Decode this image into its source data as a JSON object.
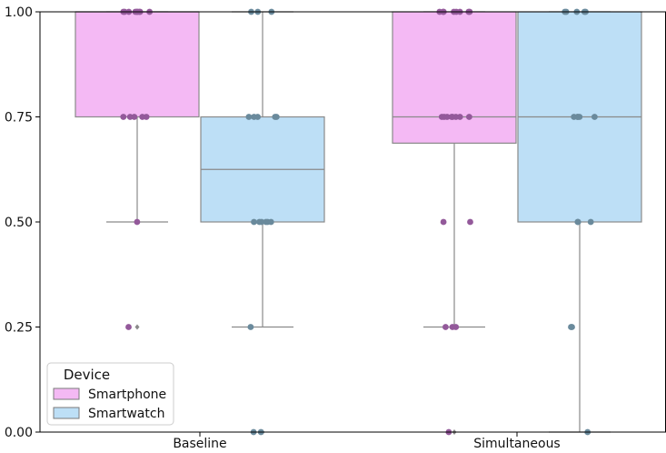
{
  "chart_data": {
    "type": "boxplot",
    "categories": [
      "Baseline",
      "Simultaneous"
    ],
    "ylim": [
      0,
      1
    ],
    "yticks": [
      "0.00",
      "0.25",
      "0.50",
      "0.75",
      "1.00"
    ],
    "ytick_values": [
      0,
      0.25,
      0.5,
      0.75,
      1
    ],
    "grid": false,
    "legend": {
      "title": "Device",
      "placement": "lower-left",
      "entries": [
        "Smartphone",
        "Smartwatch"
      ]
    },
    "series": [
      {
        "name": "Smartphone",
        "color": "#f4b9f4",
        "point_color": "#93599a",
        "boxes": [
          {
            "category": "Baseline",
            "whisker_low": 0.5,
            "q1": 0.75,
            "median": 1.0,
            "q3": 1.0,
            "whisker_high": 1.0,
            "outliers": [
              0.25
            ]
          },
          {
            "category": "Simultaneous",
            "whisker_low": 0.25,
            "q1": 0.6875,
            "median": 0.75,
            "q3": 1.0,
            "whisker_high": 1.0,
            "outliers": [
              0.0
            ]
          }
        ],
        "points": [
          {
            "category": "Baseline",
            "values": [
              1,
              1,
              1,
              1,
              1,
              1,
              1,
              1,
              1,
              0.75,
              0.75,
              0.75,
              0.75,
              0.75,
              0.5,
              0.25
            ]
          },
          {
            "category": "Simultaneous",
            "values": [
              1,
              1,
              1,
              1,
              1,
              1,
              1,
              1,
              0.75,
              0.75,
              0.75,
              0.75,
              0.75,
              0.75,
              0.75,
              0.75,
              0.5,
              0.5,
              0.25,
              0.25,
              0.25,
              0
            ]
          }
        ]
      },
      {
        "name": "Smartwatch",
        "color": "#bddff6",
        "point_color": "#6a8a9c",
        "boxes": [
          {
            "category": "Baseline",
            "whisker_low": 0.25,
            "q1": 0.5,
            "median": 0.625,
            "q3": 0.75,
            "whisker_high": 1.0,
            "outliers": [
              0.0
            ]
          },
          {
            "category": "Simultaneous",
            "whisker_low": 0.0,
            "q1": 0.5,
            "median": 0.75,
            "q3": 1.0,
            "whisker_high": 1.0,
            "outliers": []
          }
        ],
        "points": [
          {
            "category": "Baseline",
            "values": [
              1,
              1,
              1,
              0.75,
              0.75,
              0.75,
              0.75,
              0.75,
              0.5,
              0.5,
              0.5,
              0.5,
              0.5,
              0.5,
              0.25,
              0,
              0
            ]
          },
          {
            "category": "Simultaneous",
            "values": [
              1,
              1,
              1,
              1,
              1,
              0.75,
              0.75,
              0.75,
              0.75,
              0.75,
              0.5,
              0.5,
              0.5,
              0.25,
              0.25,
              0
            ]
          }
        ]
      }
    ]
  }
}
